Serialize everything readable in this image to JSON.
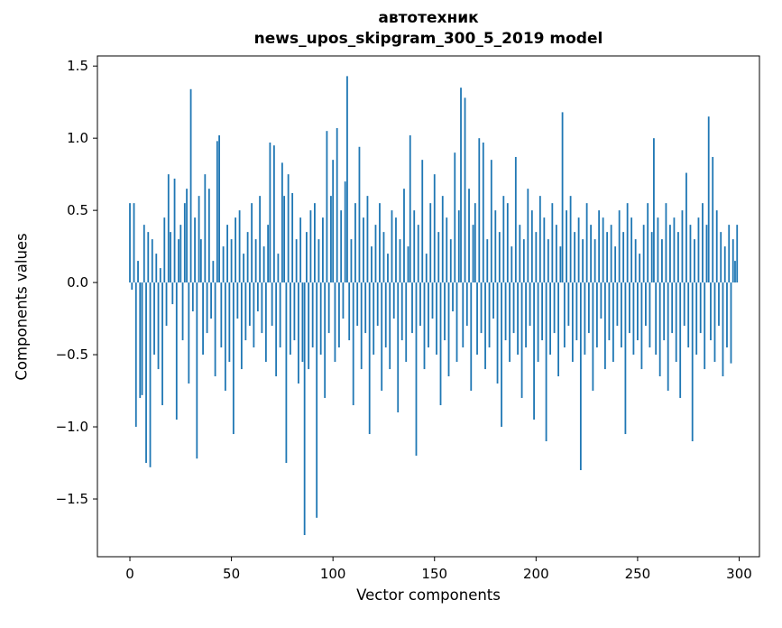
{
  "figure": {
    "title_line1": "автотехник",
    "title_line2": "news_upos_skipgram_300_5_2019 model",
    "xlabel": "Vector components",
    "ylabel": "Components values"
  },
  "chart_data": {
    "type": "bar",
    "title": "автотехник",
    "subtitle": "news_upos_skipgram_300_5_2019 model",
    "xlabel": "Vector components",
    "ylabel": "Components values",
    "bar_color": "#1f77b4",
    "grid": false,
    "legend": false,
    "xlim": [
      -16,
      310
    ],
    "ylim": [
      -1.9,
      1.57
    ],
    "xticks": [
      0,
      50,
      100,
      150,
      200,
      250,
      300
    ],
    "xtick_labels": [
      "0",
      "50",
      "100",
      "150",
      "200",
      "250",
      "300"
    ],
    "yticks": [
      1.5,
      1.0,
      0.5,
      0.0,
      -0.5,
      -1.0,
      -1.5
    ],
    "ytick_labels": [
      "1.5",
      "1.0",
      "0.5",
      "0.0",
      "−0.5",
      "−1.0",
      "−1.5"
    ],
    "values": [
      0.55,
      -0.05,
      0.55,
      -1.0,
      0.15,
      -0.8,
      -0.78,
      0.4,
      -1.25,
      0.35,
      -1.28,
      0.3,
      -0.5,
      0.2,
      -0.6,
      0.1,
      -0.85,
      0.45,
      -0.3,
      0.75,
      0.35,
      -0.15,
      0.72,
      -0.95,
      0.3,
      0.4,
      -0.4,
      0.55,
      0.65,
      -0.7,
      1.34,
      -0.2,
      0.45,
      -1.22,
      0.6,
      0.3,
      -0.5,
      0.75,
      -0.35,
      0.65,
      -0.25,
      0.15,
      -0.65,
      0.98,
      1.02,
      -0.45,
      0.25,
      -0.75,
      0.4,
      -0.55,
      0.3,
      -1.05,
      0.45,
      -0.25,
      0.5,
      -0.6,
      0.2,
      -0.4,
      0.35,
      -0.3,
      0.55,
      -0.45,
      0.3,
      -0.2,
      0.6,
      -0.35,
      0.25,
      -0.55,
      0.4,
      0.97,
      -0.3,
      0.95,
      -0.65,
      0.2,
      -0.45,
      0.83,
      0.6,
      -1.25,
      0.75,
      -0.5,
      0.62,
      -0.4,
      0.3,
      -0.7,
      0.45,
      -0.55,
      -1.75,
      0.35,
      -0.6,
      0.5,
      -0.45,
      0.55,
      -1.63,
      0.3,
      -0.5,
      0.45,
      -0.8,
      1.05,
      -0.35,
      0.6,
      0.85,
      -0.55,
      1.07,
      -0.45,
      0.5,
      -0.25,
      0.7,
      1.43,
      -0.4,
      0.3,
      -0.85,
      0.55,
      -0.3,
      0.94,
      -0.6,
      0.45,
      -0.35,
      0.6,
      -1.05,
      0.25,
      -0.5,
      0.4,
      -0.3,
      0.55,
      -0.75,
      0.35,
      -0.45,
      0.2,
      -0.6,
      0.5,
      -0.25,
      0.45,
      -0.9,
      0.3,
      -0.4,
      0.65,
      -0.55,
      0.25,
      1.02,
      -0.35,
      0.5,
      -1.2,
      0.4,
      -0.3,
      0.85,
      -0.6,
      0.2,
      -0.45,
      0.55,
      -0.25,
      0.75,
      -0.5,
      0.35,
      -0.85,
      0.6,
      -0.4,
      0.45,
      -0.65,
      0.3,
      -0.2,
      0.9,
      -0.55,
      0.5,
      1.35,
      -0.45,
      1.28,
      -0.3,
      0.65,
      -0.75,
      0.4,
      0.55,
      -0.5,
      1.0,
      -0.35,
      0.97,
      -0.6,
      0.3,
      -0.45,
      0.85,
      -0.25,
      0.5,
      -0.7,
      0.35,
      -1.0,
      0.6,
      -0.4,
      0.55,
      -0.55,
      0.25,
      -0.35,
      0.87,
      -0.5,
      0.4,
      -0.8,
      0.3,
      -0.45,
      0.65,
      -0.3,
      0.5,
      -0.95,
      0.35,
      -0.55,
      0.6,
      -0.4,
      0.45,
      -1.1,
      0.3,
      -0.5,
      0.55,
      -0.35,
      0.4,
      -0.65,
      0.25,
      1.18,
      -0.45,
      0.5,
      -0.3,
      0.6,
      -0.55,
      0.35,
      -0.4,
      0.45,
      -1.3,
      0.3,
      -0.5,
      0.55,
      -0.35,
      0.4,
      -0.75,
      0.3,
      -0.45,
      0.5,
      -0.25,
      0.45,
      -0.6,
      0.35,
      -0.4,
      0.4,
      -0.55,
      0.25,
      -0.3,
      0.5,
      -0.45,
      0.35,
      -1.05,
      0.55,
      -0.35,
      0.45,
      -0.5,
      0.3,
      -0.4,
      0.2,
      -0.6,
      0.4,
      -0.3,
      0.55,
      -0.45,
      0.35,
      1.0,
      -0.5,
      0.45,
      -0.65,
      0.3,
      -0.4,
      0.55,
      -0.75,
      0.4,
      -0.35,
      0.45,
      -0.55,
      0.35,
      -0.8,
      0.5,
      -0.3,
      0.76,
      -0.45,
      0.4,
      -1.1,
      0.3,
      -0.5,
      0.45,
      -0.35,
      0.55,
      -0.6,
      0.4,
      1.15,
      -0.4,
      0.87,
      -0.55,
      0.5,
      -0.3,
      0.35,
      -0.65,
      0.25,
      -0.45,
      0.4,
      -0.56,
      0.3,
      0.15,
      0.4
    ]
  }
}
